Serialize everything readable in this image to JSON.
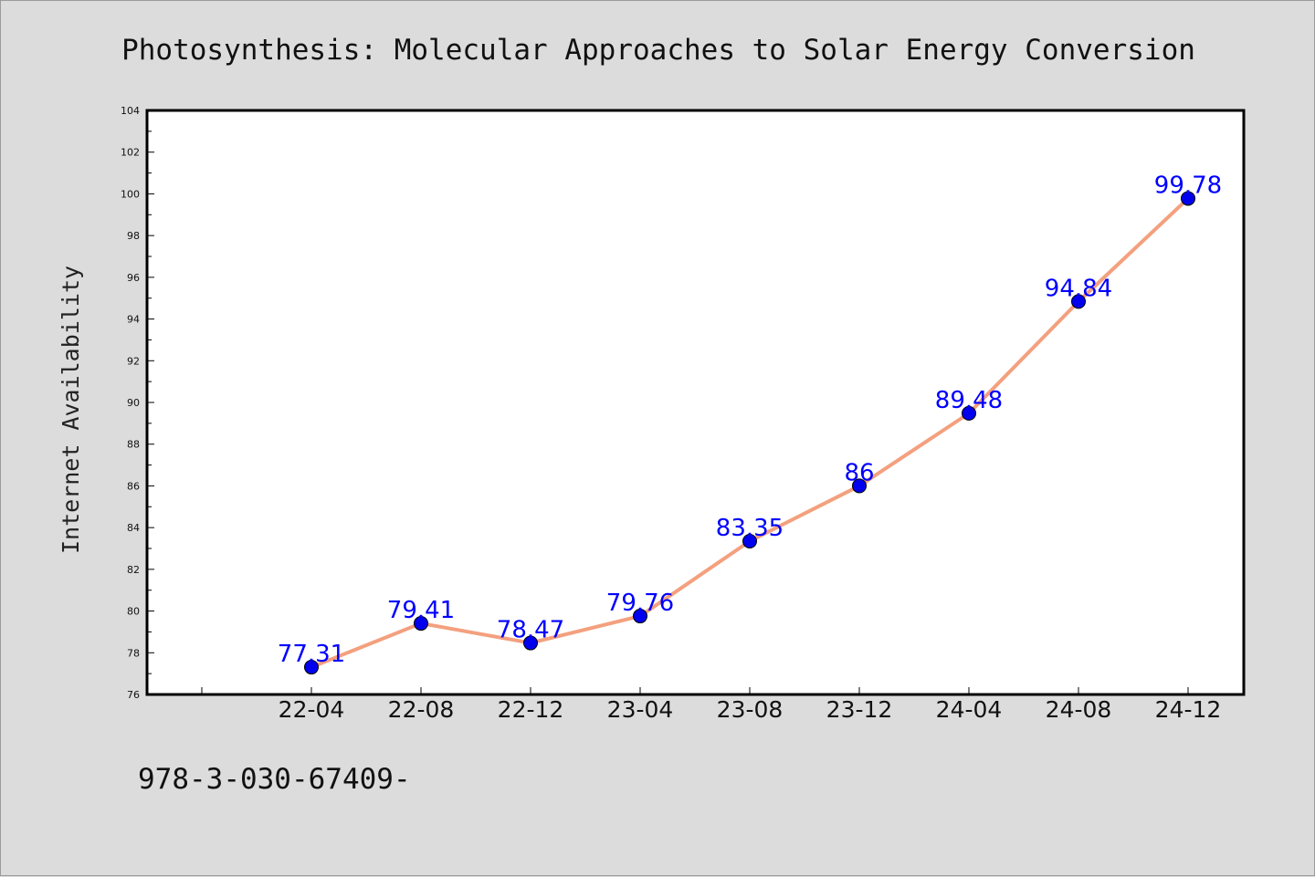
{
  "chart_data": {
    "type": "line",
    "title": "Photosynthesis: Molecular Approaches to Solar Energy Conversion",
    "ylabel": "Internet Availability",
    "xlabel": "",
    "x": [
      "22-04",
      "22-08",
      "22-12",
      "23-04",
      "23-08",
      "23-12",
      "24-04",
      "24-08",
      "24-12"
    ],
    "series": [
      {
        "values": [
          77.31,
          79.41,
          78.47,
          79.76,
          83.35,
          86,
          89.48,
          94.84,
          99.78
        ],
        "labels": [
          "77.31",
          "79.41",
          "78.47",
          "79.76",
          "83.35",
          "86",
          "89.48",
          "94.84",
          "99.78"
        ]
      }
    ],
    "ylim": [
      76,
      104
    ],
    "yticks": [
      76,
      78,
      80,
      82,
      84,
      86,
      88,
      90,
      92,
      94,
      96,
      98,
      100,
      102,
      104
    ],
    "grid": false,
    "line_color": "#f4a07e",
    "marker_color": "#0000ee",
    "label_color": "#0000ff",
    "plot_background": "#ffffff",
    "page_background": "#dcdcdc"
  },
  "footer": {
    "text": "978-3-030-67409-"
  }
}
